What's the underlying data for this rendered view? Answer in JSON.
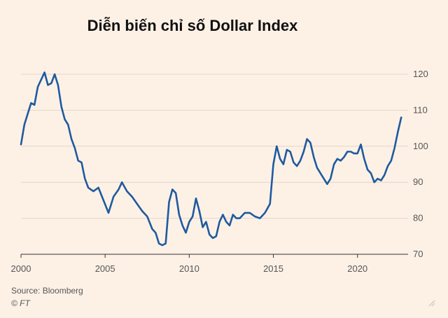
{
  "title": "Diễn biến chỉ số Dollar Index",
  "source": "Source: Bloomberg",
  "copyright": "© FT",
  "colors": {
    "background": "#fdf1e6",
    "line": "#1f5a9e",
    "grid": "#e2d6cc",
    "axis_text": "#555555"
  },
  "chart_data": {
    "type": "line",
    "title": "Diễn biến chỉ số Dollar Index",
    "xlabel": "",
    "ylabel": "",
    "xlim": [
      2000,
      2022.8
    ],
    "ylim": [
      70,
      120
    ],
    "xticks": [
      2000,
      2005,
      2010,
      2015,
      2020
    ],
    "yticks": [
      70,
      80,
      90,
      100,
      110,
      120
    ],
    "y_axis_side": "right",
    "grid": "horizontal",
    "series": [
      {
        "x": [
          2000.0,
          2000.2,
          2000.4,
          2000.6,
          2000.8,
          2001.0,
          2001.2,
          2001.4,
          2001.6,
          2001.8,
          2002.0,
          2002.2,
          2002.4,
          2002.6,
          2002.8,
          2003.0,
          2003.2,
          2003.4,
          2003.6,
          2003.8,
          2004.0,
          2004.3,
          2004.6,
          2004.9,
          2005.2,
          2005.5,
          2005.8,
          2006.0,
          2006.3,
          2006.6,
          2006.9,
          2007.2,
          2007.5,
          2007.8,
          2008.0,
          2008.2,
          2008.4,
          2008.6,
          2008.8,
          2009.0,
          2009.2,
          2009.4,
          2009.6,
          2009.8,
          2010.0,
          2010.2,
          2010.4,
          2010.6,
          2010.8,
          2011.0,
          2011.2,
          2011.4,
          2011.6,
          2011.8,
          2012.0,
          2012.2,
          2012.4,
          2012.6,
          2012.8,
          2013.0,
          2013.3,
          2013.6,
          2013.9,
          2014.2,
          2014.5,
          2014.8,
          2015.0,
          2015.2,
          2015.4,
          2015.6,
          2015.8,
          2016.0,
          2016.2,
          2016.4,
          2016.6,
          2016.8,
          2017.0,
          2017.2,
          2017.4,
          2017.6,
          2017.8,
          2018.0,
          2018.2,
          2018.4,
          2018.6,
          2018.8,
          2019.0,
          2019.2,
          2019.4,
          2019.6,
          2019.8,
          2020.0,
          2020.2,
          2020.4,
          2020.6,
          2020.8,
          2021.0,
          2021.2,
          2021.4,
          2021.6,
          2021.8,
          2022.0,
          2022.2,
          2022.4,
          2022.6
        ],
        "values": [
          100.5,
          106.0,
          109.0,
          112.0,
          111.5,
          116.5,
          118.5,
          120.5,
          117.0,
          117.5,
          120.0,
          117.0,
          111.0,
          107.5,
          106.0,
          102.0,
          99.5,
          96.0,
          95.5,
          91.0,
          88.5,
          87.5,
          88.5,
          85.0,
          81.5,
          86.0,
          88.0,
          90.0,
          87.5,
          86.0,
          84.0,
          82.0,
          80.5,
          77.0,
          76.0,
          73.0,
          72.5,
          73.0,
          84.5,
          88.0,
          87.0,
          81.0,
          78.0,
          76.0,
          79.0,
          80.5,
          85.5,
          82.0,
          77.5,
          79.0,
          75.5,
          74.5,
          75.0,
          79.0,
          81.0,
          79.0,
          78.0,
          81.0,
          80.0,
          80.0,
          81.5,
          81.5,
          80.5,
          80.0,
          81.5,
          84.0,
          95.0,
          100.0,
          96.5,
          95.0,
          99.0,
          98.5,
          95.5,
          94.5,
          96.0,
          98.5,
          102.0,
          101.0,
          97.0,
          94.0,
          92.5,
          91.0,
          89.5,
          91.0,
          95.0,
          96.5,
          96.0,
          97.0,
          98.5,
          98.5,
          98.0,
          98.0,
          100.5,
          96.5,
          93.5,
          92.5,
          90.0,
          91.0,
          90.5,
          92.0,
          94.5,
          96.0,
          99.5,
          104.0,
          108.0
        ]
      }
    ]
  }
}
